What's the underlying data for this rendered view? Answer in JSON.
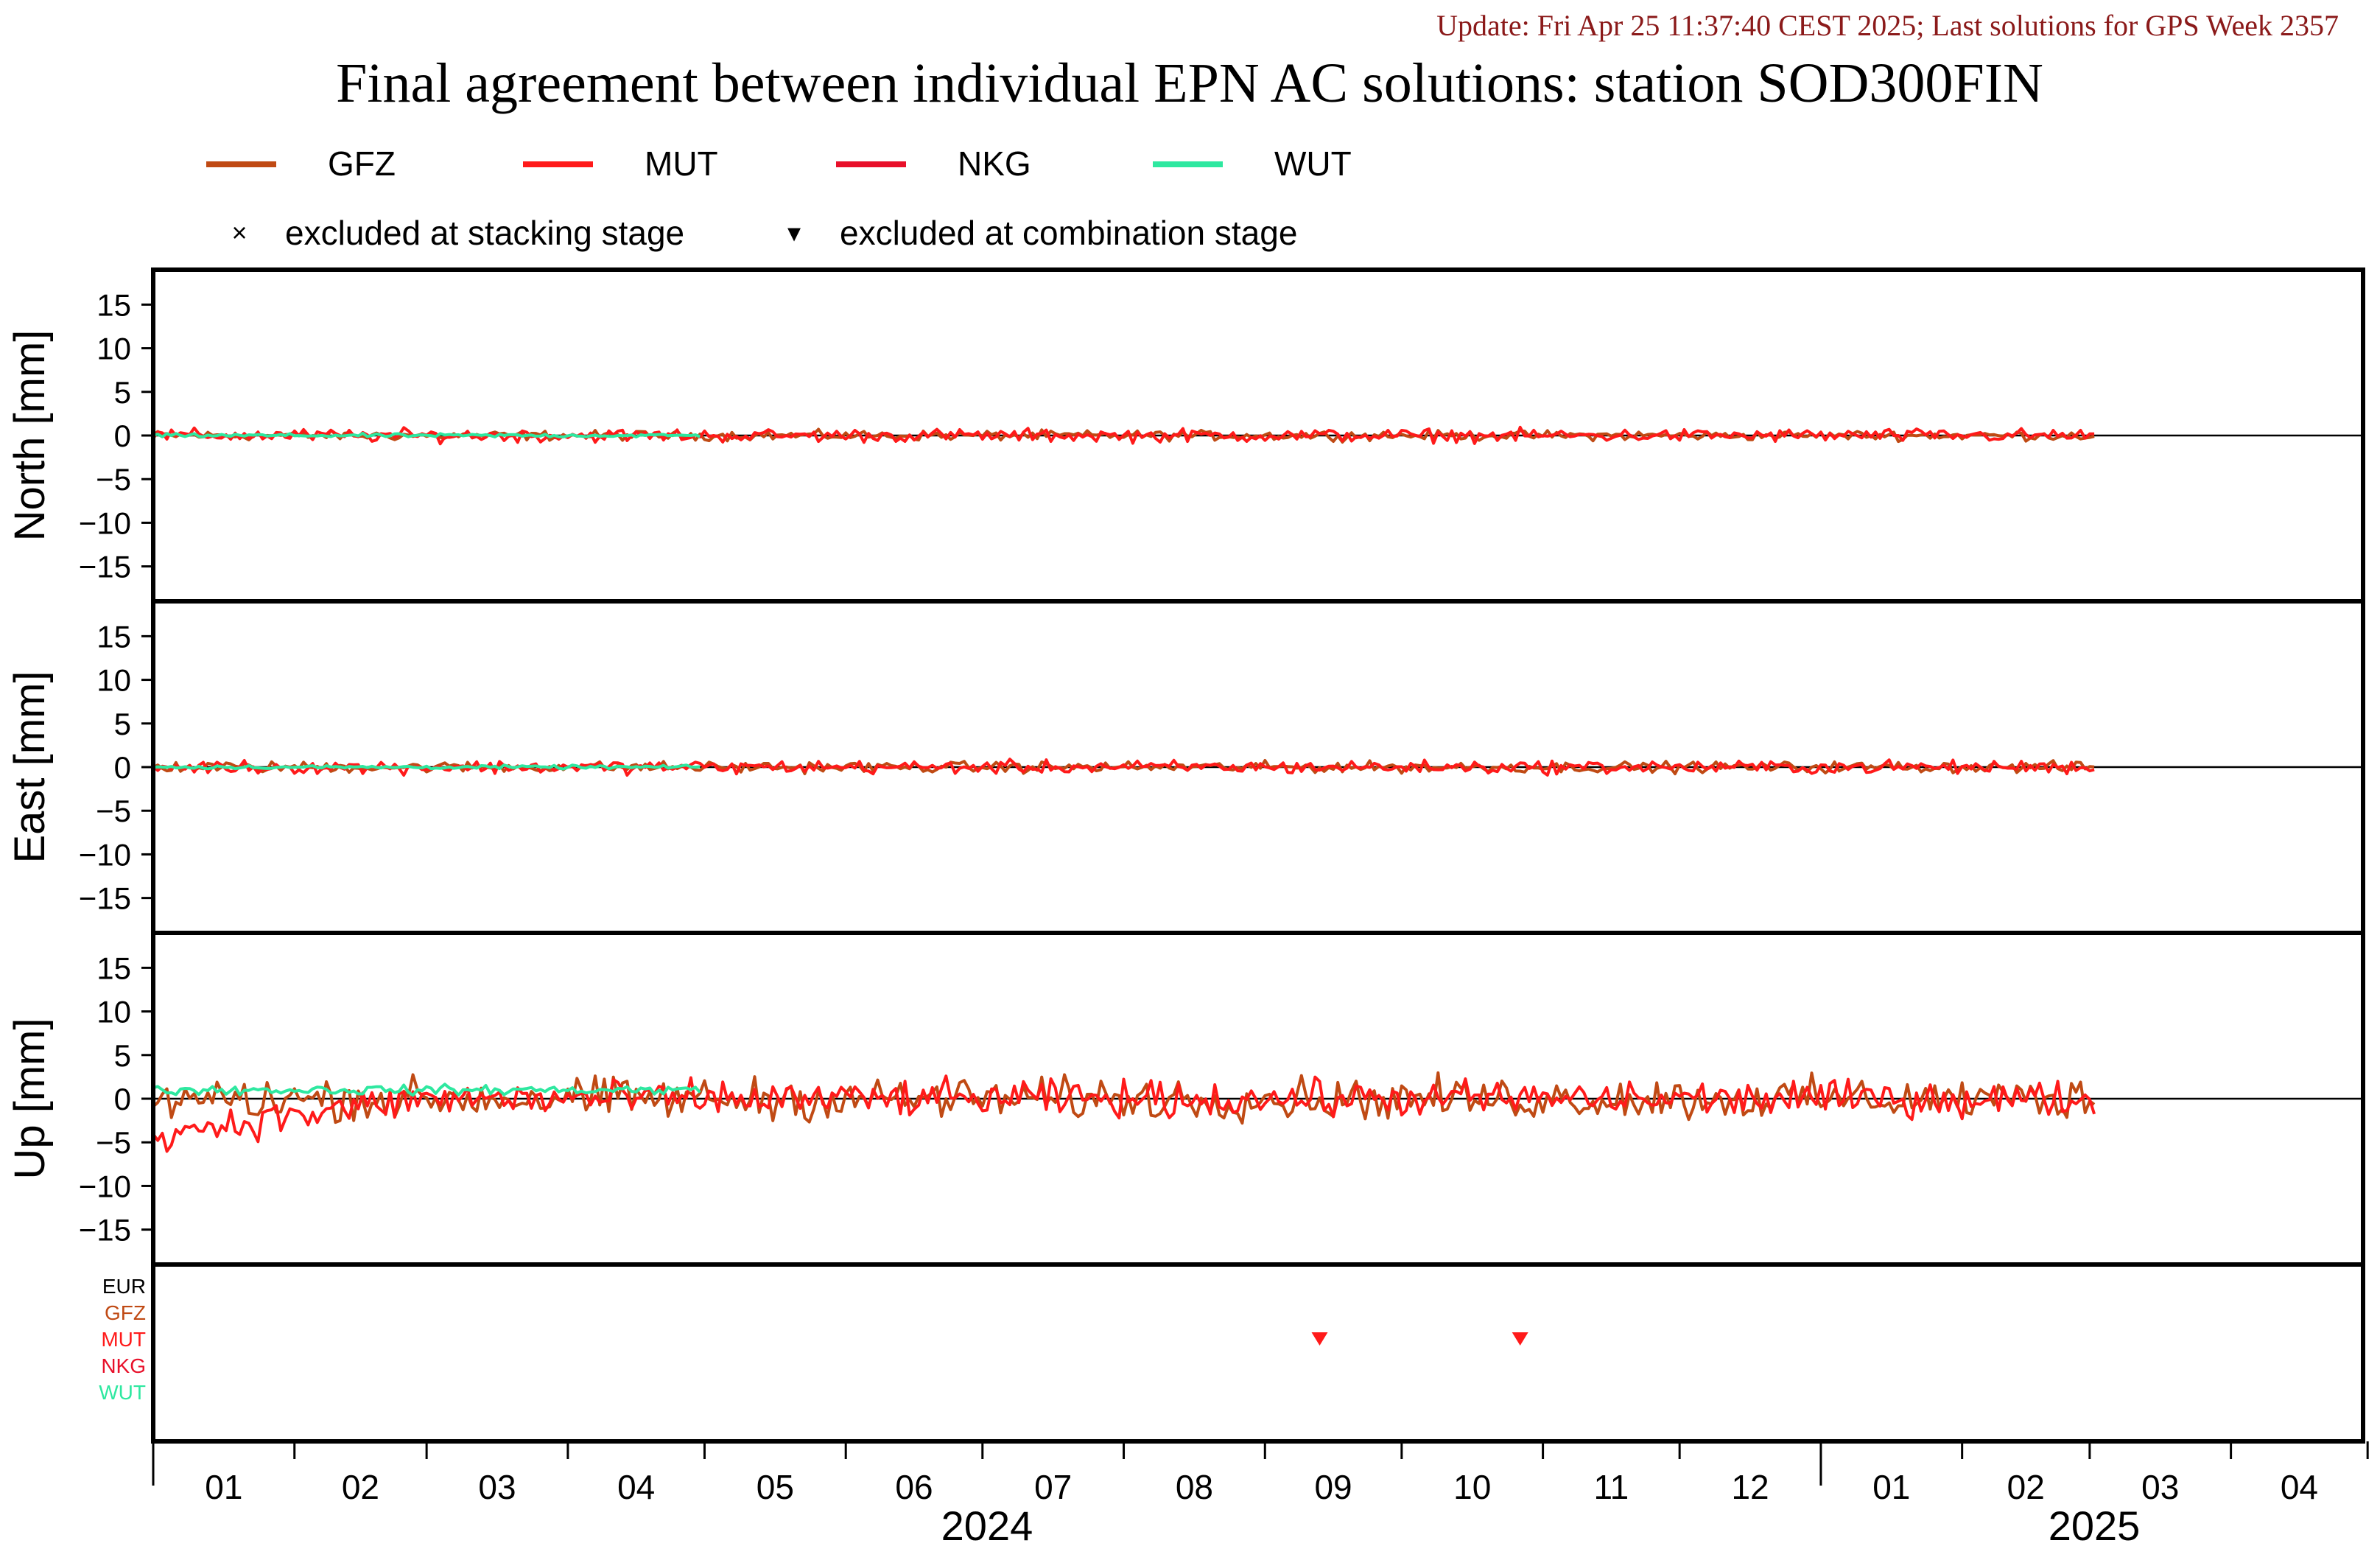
{
  "update_text": "Update: Fri Apr 25 11:37:40 CEST 2025; Last solutions for GPS Week 2357",
  "colors": {
    "update_text": "#8b1a1a",
    "GFZ": "#c04a14",
    "MUT": "#ff1a1a",
    "NKG": "#e8102a",
    "WUT": "#2ee8a0",
    "EUR": "#000000"
  },
  "chart_data": {
    "type": "line",
    "title": "Final agreement between individual EPN AC solutions: station SOD300FIN",
    "legend": {
      "placement": "top",
      "entries": [
        {
          "name": "GFZ",
          "color": "#c04a14"
        },
        {
          "name": "MUT",
          "color": "#ff1a1a"
        },
        {
          "name": "NKG",
          "color": "#e8102a"
        },
        {
          "name": "WUT",
          "color": "#2ee8a0"
        }
      ],
      "markers": [
        {
          "symbol": "×",
          "label": "excluded at stacking stage"
        },
        {
          "symbol": "▾",
          "label": "excluded at combination stage"
        }
      ]
    },
    "x_range": [
      "2024-01-01",
      "2025-04-30"
    ],
    "x_ticks": {
      "months": [
        "01",
        "02",
        "03",
        "04",
        "05",
        "06",
        "07",
        "08",
        "09",
        "10",
        "11",
        "12",
        "01",
        "02",
        "03",
        "04"
      ],
      "years": [
        "2024",
        "2025"
      ]
    },
    "y_range": [
      -19,
      19
    ],
    "y_ticks": [
      -15,
      -10,
      -5,
      0,
      5,
      10,
      15
    ],
    "panels": [
      {
        "ylabel": "North [mm]",
        "series": [
          {
            "name": "GFZ",
            "x_range": [
              "2024-01-01",
              "2025-03-02"
            ],
            "amplitude": 0.8
          },
          {
            "name": "MUT",
            "x_range": [
              "2024-01-01",
              "2025-03-02"
            ],
            "amplitude": 1.1
          },
          {
            "name": "WUT",
            "x_range": [
              "2024-01-01",
              "2024-04-30"
            ],
            "amplitude": 0.3
          }
        ]
      },
      {
        "ylabel": "East [mm]",
        "series": [
          {
            "name": "GFZ",
            "x_range": [
              "2024-01-01",
              "2025-03-02"
            ],
            "amplitude": 0.9
          },
          {
            "name": "MUT",
            "x_range": [
              "2024-01-01",
              "2025-03-02"
            ],
            "amplitude": 1.1
          },
          {
            "name": "WUT",
            "x_range": [
              "2024-01-01",
              "2024-04-30"
            ],
            "amplitude": 0.3
          }
        ]
      },
      {
        "ylabel": "Up [mm]",
        "series": [
          {
            "name": "GFZ",
            "x_range": [
              "2024-01-01",
              "2025-03-02"
            ],
            "amplitude": 3.5
          },
          {
            "name": "MUT",
            "x_range": [
              "2024-01-01",
              "2025-03-02"
            ],
            "amplitude": 3.0
          },
          {
            "name": "WUT",
            "x_range": [
              "2024-01-01",
              "2024-04-30"
            ],
            "amplitude": 0.8
          }
        ]
      }
    ],
    "exclusion_panel": {
      "ac_labels": [
        "EUR",
        "GFZ",
        "MUT",
        "NKG",
        "WUT"
      ],
      "combination_exclusions": [
        {
          "ac": "MUT",
          "date": "2024-09-13"
        },
        {
          "ac": "MUT",
          "date": "2024-10-27"
        }
      ]
    }
  }
}
